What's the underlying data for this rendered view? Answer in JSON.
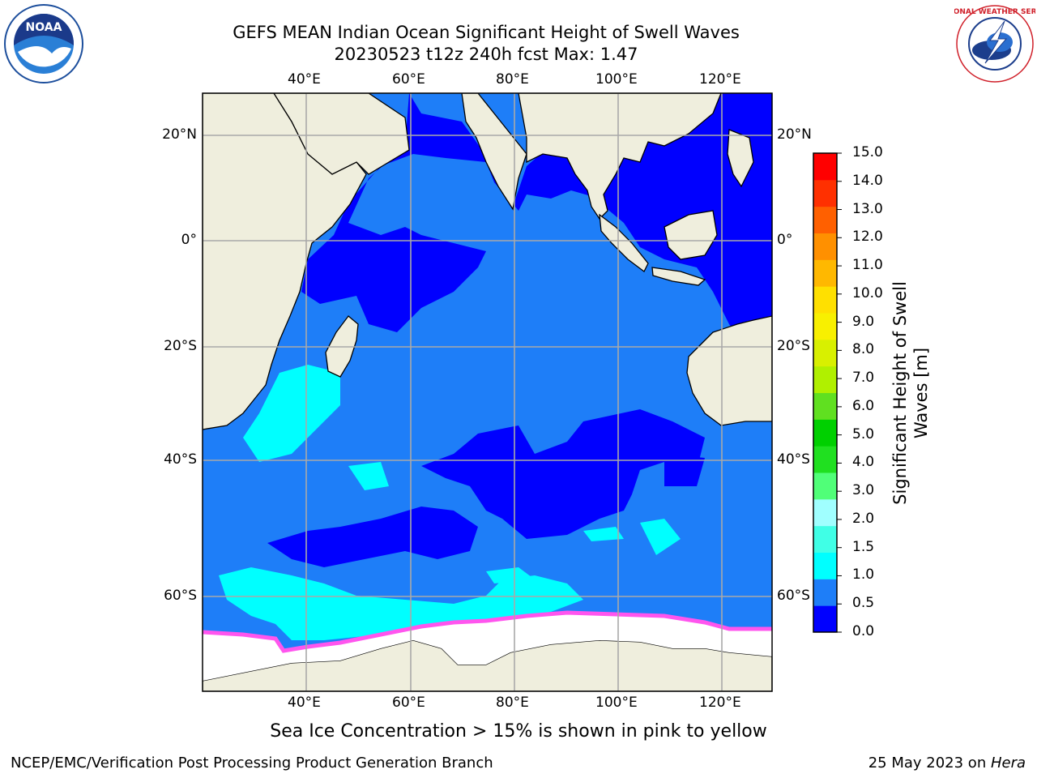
{
  "header": {
    "title_line1": "GEFS MEAN Indian Ocean Significant Height of Swell Waves",
    "title_line2": "20230523 t12z 240h fcst   Max: 1.47",
    "left_logo_text": "NOAA",
    "right_logo_text": "NATIONAL WEATHER SERVICE"
  },
  "map": {
    "lon_labels": [
      "40°E",
      "60°E",
      "80°E",
      "100°E",
      "120°E"
    ],
    "lat_labels": [
      "20°N",
      "0°",
      "20°S",
      "40°S",
      "60°S"
    ]
  },
  "colorbar": {
    "label": "Significant Height of Swell Waves [m]",
    "ticks": [
      "0.0",
      "0.5",
      "1.0",
      "1.5",
      "2.0",
      "3.0",
      "4.0",
      "5.0",
      "6.0",
      "7.0",
      "8.0",
      "9.0",
      "10.0",
      "11.0",
      "12.0",
      "13.0",
      "14.0",
      "15.0"
    ],
    "colors": [
      "#0000ff",
      "#1e7ef8",
      "#00ffff",
      "#40ffe6",
      "#a0ffff",
      "#50ff78",
      "#20e020",
      "#00d000",
      "#60e020",
      "#b0f000",
      "#d8f000",
      "#f8f000",
      "#ffe000",
      "#ffb800",
      "#ff9000",
      "#ff6000",
      "#ff3000",
      "#ff0000"
    ]
  },
  "footer": {
    "caption": "Sea Ice Concentration > 15% is shown in pink to yellow",
    "left": "NCEP/EMC/Verification Post Processing Product Generation Branch",
    "right_date": "25 May 2023 on ",
    "right_host": "Hera"
  }
}
